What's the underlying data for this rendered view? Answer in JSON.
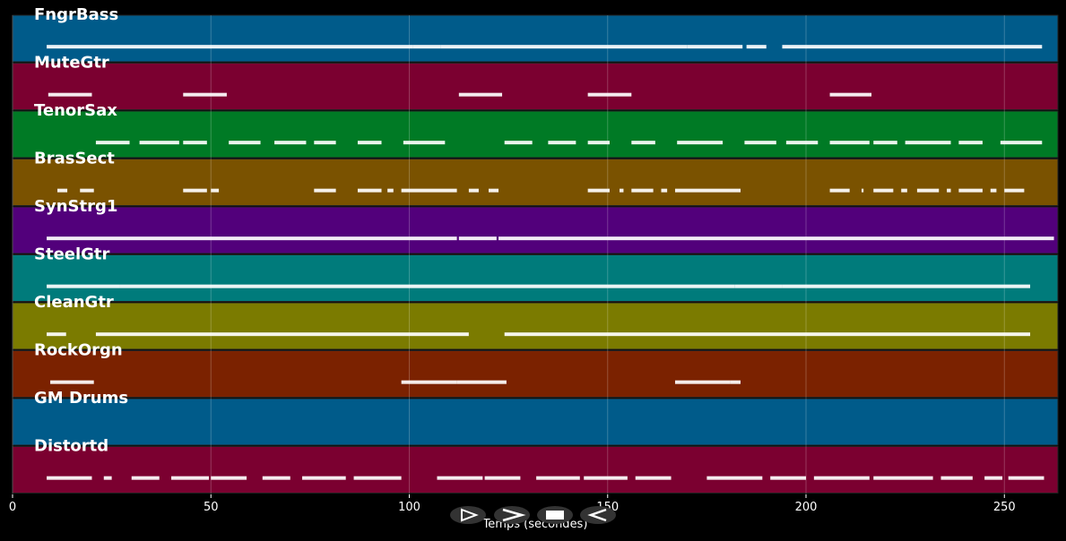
{
  "chart_data": {
    "type": "pianoroll",
    "x_label": "Temps (secondes)",
    "xlim": [
      0,
      263.5
    ],
    "xticks": [
      0,
      50,
      100,
      150,
      200,
      250
    ],
    "grid": true,
    "series": [
      {
        "name": "FngrBass",
        "color": "#005b8a",
        "notes": [
          [
            8.6,
            101
          ],
          [
            101,
            108
          ],
          [
            108,
            170
          ],
          [
            170,
            184
          ],
          [
            185,
            190
          ],
          [
            194,
            259.5
          ]
        ]
      },
      {
        "name": "MuteGtr",
        "color": "#7b0030",
        "notes": [
          [
            9,
            20
          ],
          [
            43,
            54
          ],
          [
            112.5,
            123.4
          ],
          [
            145,
            156
          ],
          [
            206,
            216.5
          ]
        ]
      },
      {
        "name": "TenorSax",
        "color": "#007a25",
        "notes": [
          [
            21,
            29.5
          ],
          [
            32,
            42
          ],
          [
            43,
            49
          ],
          [
            54.5,
            62.5
          ],
          [
            66,
            74
          ],
          [
            76,
            81.5
          ],
          [
            87,
            93
          ],
          [
            98.5,
            109
          ],
          [
            124,
            131
          ],
          [
            135,
            142
          ],
          [
            145,
            150.5
          ],
          [
            156,
            162
          ],
          [
            167.5,
            179
          ],
          [
            184.5,
            192.5
          ],
          [
            195,
            203
          ],
          [
            206,
            216
          ],
          [
            217,
            223
          ],
          [
            225,
            236.5
          ],
          [
            238.5,
            244.5
          ],
          [
            249,
            259.5
          ]
        ]
      },
      {
        "name": "BrasSect",
        "color": "#7a5200",
        "notes": [
          [
            11.3,
            13.8
          ],
          [
            17,
            20.5
          ],
          [
            43,
            49
          ],
          [
            50,
            52
          ],
          [
            76,
            81.5
          ],
          [
            87,
            93
          ],
          [
            94.5,
            96
          ],
          [
            98,
            112
          ],
          [
            115,
            117.5
          ],
          [
            120,
            122.5
          ],
          [
            145,
            150.5
          ],
          [
            153,
            154
          ],
          [
            156,
            161.5
          ],
          [
            163.5,
            165
          ],
          [
            167,
            183.5
          ],
          [
            206,
            211
          ],
          [
            214,
            214.5
          ],
          [
            217,
            222
          ],
          [
            224,
            225.5
          ],
          [
            228,
            233.5
          ],
          [
            235.5,
            236.5
          ],
          [
            238.5,
            244.5
          ],
          [
            246.5,
            248
          ],
          [
            250,
            255
          ]
        ]
      },
      {
        "name": "SynStrg1",
        "color": "#52007b",
        "notes": [
          [
            8.6,
            112
          ],
          [
            112.5,
            122
          ],
          [
            122.5,
            262.5
          ]
        ]
      },
      {
        "name": "SteelGtr",
        "color": "#007b7b",
        "notes": [
          [
            8.6,
            27
          ],
          [
            27,
            182
          ],
          [
            182,
            194
          ],
          [
            194,
            256.5
          ]
        ]
      },
      {
        "name": "CleanGtr",
        "color": "#7b7b00",
        "notes": [
          [
            8.6,
            13.5
          ],
          [
            21,
            115
          ],
          [
            124,
            256.5
          ]
        ]
      },
      {
        "name": "RockOrgn",
        "color": "#7b2200",
        "notes": [
          [
            9.5,
            20.5
          ],
          [
            98,
            112
          ],
          [
            112,
            124.5
          ],
          [
            167,
            181
          ],
          [
            181,
            183.5
          ]
        ]
      },
      {
        "name": "GM Drums",
        "color": "#005b8a",
        "notes": []
      },
      {
        "name": "Distortd",
        "color": "#7b0030",
        "notes": [
          [
            8.6,
            20
          ],
          [
            23,
            25
          ],
          [
            30,
            37
          ],
          [
            40,
            49.5
          ],
          [
            50,
            59
          ],
          [
            63,
            70
          ],
          [
            73,
            84
          ],
          [
            86,
            98
          ],
          [
            107,
            118.5
          ],
          [
            119,
            128
          ],
          [
            132,
            143
          ],
          [
            144,
            155
          ],
          [
            157,
            166
          ],
          [
            175,
            189
          ],
          [
            191,
            200
          ],
          [
            202,
            216
          ],
          [
            217,
            232
          ],
          [
            234,
            242
          ],
          [
            245,
            249.5
          ],
          [
            251,
            260
          ]
        ]
      }
    ]
  }
}
